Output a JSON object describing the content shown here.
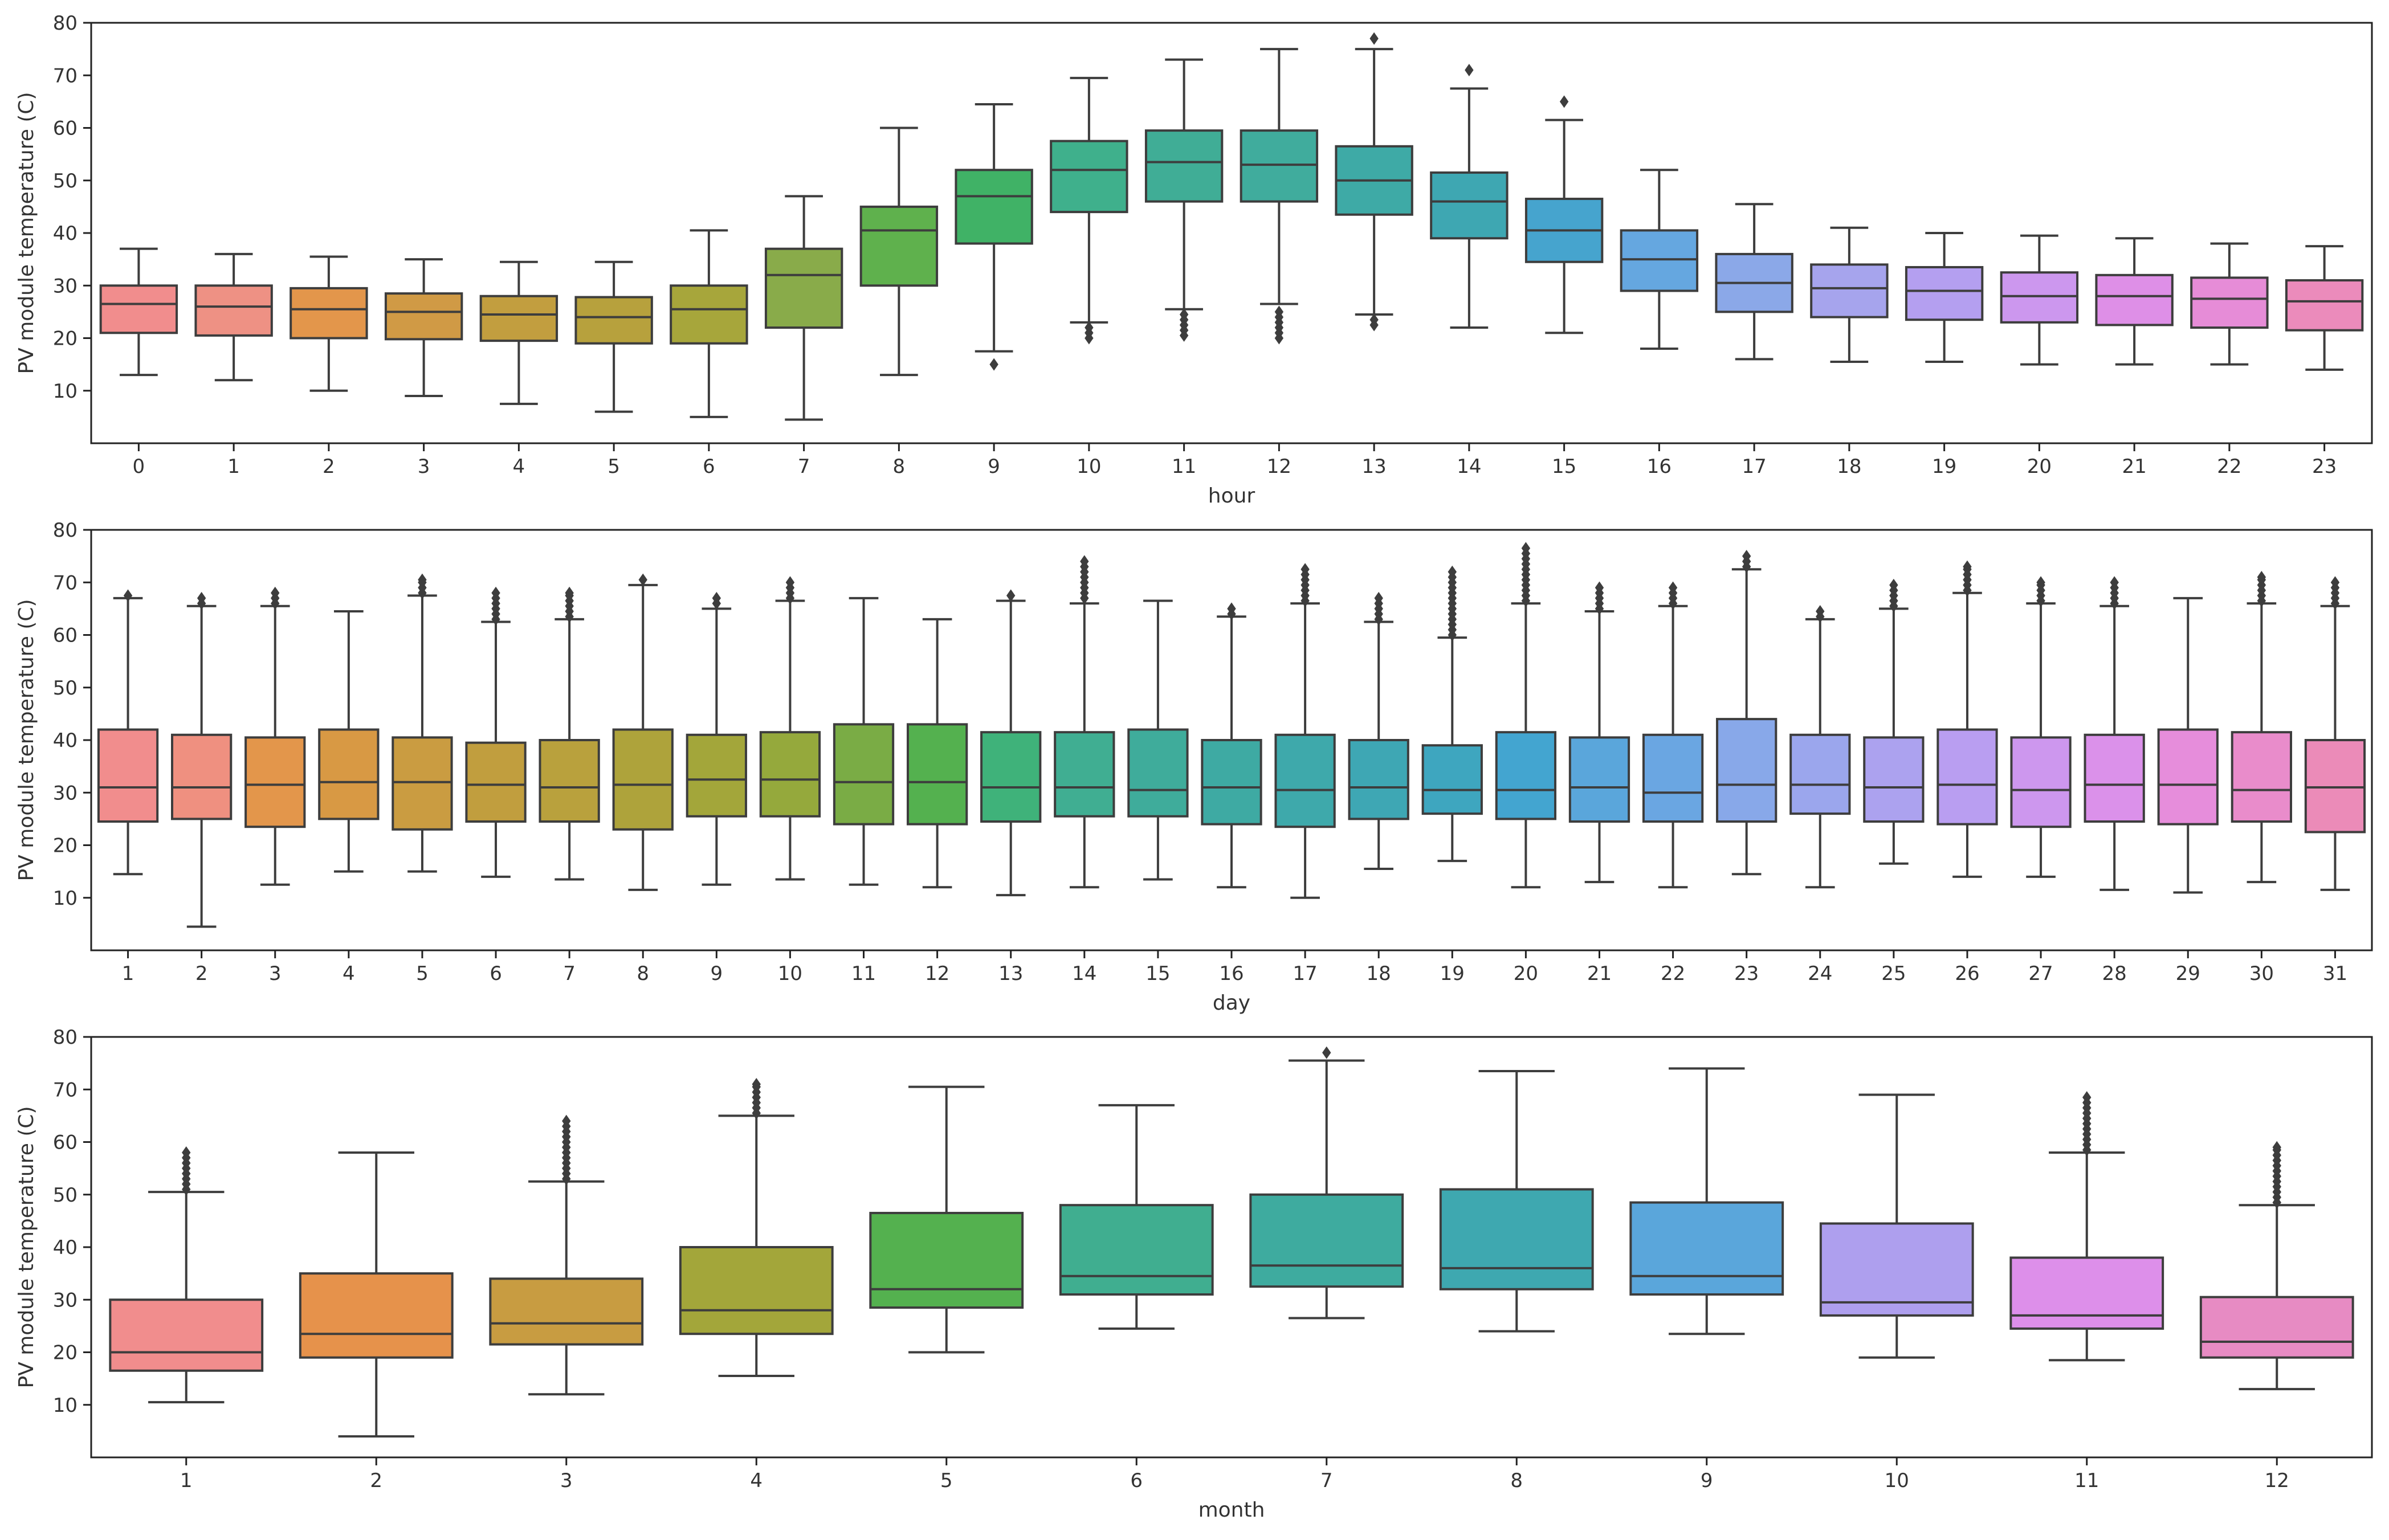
{
  "chart_data": [
    {
      "type": "box",
      "xlabel": "hour",
      "ylabel": "PV module temperature (C)",
      "ylim": [
        0,
        80
      ],
      "yticks": [
        10,
        20,
        30,
        40,
        50,
        60,
        70,
        80
      ],
      "grid": false,
      "categories": [
        "0",
        "1",
        "2",
        "3",
        "4",
        "5",
        "6",
        "7",
        "8",
        "9",
        "10",
        "11",
        "12",
        "13",
        "14",
        "15",
        "16",
        "17",
        "18",
        "19",
        "20",
        "21",
        "22",
        "23"
      ],
      "colors": [
        "#f18d8d",
        "#ee9184",
        "#e3964b",
        "#d09a45",
        "#c29e3f",
        "#b7a13d",
        "#a7a63b",
        "#89ab4a",
        "#5fb14d",
        "#40b266",
        "#3fb08c",
        "#40ad96",
        "#40ac9d",
        "#3eaaa6",
        "#3ea7b2",
        "#46a4ce",
        "#65a7e0",
        "#8ba8e8",
        "#a6a4ed",
        "#b49ff0",
        "#cc97ee",
        "#de8fe7",
        "#e68cd7",
        "#eb8bbb"
      ],
      "stats": [
        {
          "whislo": 13,
          "q1": 21,
          "med": 26.5,
          "q3": 30,
          "whishi": 37,
          "fliers": []
        },
        {
          "whislo": 12,
          "q1": 20.5,
          "med": 26,
          "q3": 30,
          "whishi": 36,
          "fliers": []
        },
        {
          "whislo": 10,
          "q1": 20,
          "med": 25.5,
          "q3": 29.5,
          "whishi": 35.5,
          "fliers": []
        },
        {
          "whislo": 9,
          "q1": 19.8,
          "med": 25,
          "q3": 28.5,
          "whishi": 35,
          "fliers": []
        },
        {
          "whislo": 7.5,
          "q1": 19.5,
          "med": 24.5,
          "q3": 28,
          "whishi": 34.5,
          "fliers": []
        },
        {
          "whislo": 6,
          "q1": 19,
          "med": 24,
          "q3": 27.8,
          "whishi": 34.5,
          "fliers": []
        },
        {
          "whislo": 5,
          "q1": 19,
          "med": 25.5,
          "q3": 30,
          "whishi": 40.5,
          "fliers": []
        },
        {
          "whislo": 4.5,
          "q1": 22,
          "med": 32,
          "q3": 37,
          "whishi": 47,
          "fliers": []
        },
        {
          "whislo": 13,
          "q1": 30,
          "med": 40.5,
          "q3": 45,
          "whishi": 60,
          "fliers": []
        },
        {
          "whislo": 17.5,
          "q1": 38,
          "med": 47,
          "q3": 52,
          "whishi": 64.5,
          "fliers": [
            15
          ]
        },
        {
          "whislo": 23,
          "q1": 44,
          "med": 52,
          "q3": 57.5,
          "whishi": 69.5,
          "fliers": [
            20,
            21,
            22
          ]
        },
        {
          "whislo": 25.5,
          "q1": 46,
          "med": 53.5,
          "q3": 59.5,
          "whishi": 73,
          "fliers": [
            20.5,
            21.5,
            22.5,
            23.5,
            24.5
          ]
        },
        {
          "whislo": 26.5,
          "q1": 46,
          "med": 53,
          "q3": 59.5,
          "whishi": 75,
          "fliers": [
            20,
            21,
            22,
            23,
            24,
            25
          ]
        },
        {
          "whislo": 24.5,
          "q1": 43.5,
          "med": 50,
          "q3": 56.5,
          "whishi": 75,
          "fliers": [
            22.5,
            23.5,
            77
          ]
        },
        {
          "whislo": 22,
          "q1": 39,
          "med": 46,
          "q3": 51.5,
          "whishi": 67.5,
          "fliers": [
            71
          ]
        },
        {
          "whislo": 21,
          "q1": 34.5,
          "med": 40.5,
          "q3": 46.5,
          "whishi": 61.5,
          "fliers": [
            65
          ]
        },
        {
          "whislo": 18,
          "q1": 29,
          "med": 35,
          "q3": 40.5,
          "whishi": 52,
          "fliers": []
        },
        {
          "whislo": 16,
          "q1": 25,
          "med": 30.5,
          "q3": 36,
          "whishi": 45.5,
          "fliers": []
        },
        {
          "whislo": 15.5,
          "q1": 24,
          "med": 29.5,
          "q3": 34,
          "whishi": 41,
          "fliers": []
        },
        {
          "whislo": 15.5,
          "q1": 23.5,
          "med": 29,
          "q3": 33.5,
          "whishi": 40,
          "fliers": []
        },
        {
          "whislo": 15,
          "q1": 23,
          "med": 28,
          "q3": 32.5,
          "whishi": 39.5,
          "fliers": []
        },
        {
          "whislo": 15,
          "q1": 22.5,
          "med": 28,
          "q3": 32,
          "whishi": 39,
          "fliers": []
        },
        {
          "whislo": 15,
          "q1": 22,
          "med": 27.5,
          "q3": 31.5,
          "whishi": 38,
          "fliers": []
        },
        {
          "whislo": 14,
          "q1": 21.5,
          "med": 27,
          "q3": 31,
          "whishi": 37.5,
          "fliers": []
        }
      ]
    },
    {
      "type": "box",
      "xlabel": "day",
      "ylabel": "PV module temperature (C)",
      "ylim": [
        0,
        80
      ],
      "yticks": [
        10,
        20,
        30,
        40,
        50,
        60,
        70,
        80
      ],
      "grid": false,
      "categories": [
        "1",
        "2",
        "3",
        "4",
        "5",
        "6",
        "7",
        "8",
        "9",
        "10",
        "11",
        "12",
        "13",
        "14",
        "15",
        "16",
        "17",
        "18",
        "19",
        "20",
        "21",
        "22",
        "23",
        "24",
        "25",
        "26",
        "27",
        "28",
        "29",
        "30",
        "31"
      ],
      "colors": [
        "#f18d8d",
        "#ef9080",
        "#e3964b",
        "#d89944",
        "#ca9c41",
        "#c19e3e",
        "#b9a13d",
        "#aea33b",
        "#a3a63a",
        "#95a93c",
        "#7aac45",
        "#54b14f",
        "#3fb27a",
        "#40ae92",
        "#3fac9b",
        "#3eaaa3",
        "#3ea9ab",
        "#3ea7b4",
        "#3ea6bf",
        "#43a5d0",
        "#5aa6db",
        "#6aa6e2",
        "#88a8e9",
        "#9ba6ed",
        "#aca2ef",
        "#b99ef1",
        "#cd97ee",
        "#db91ea",
        "#e68ddb",
        "#e98ccb",
        "#eb8bb8"
      ],
      "stats": [
        {
          "whislo": 14.5,
          "q1": 24.5,
          "med": 31,
          "q3": 42,
          "whishi": 67,
          "fliers": [
            67.5
          ]
        },
        {
          "whislo": 4.5,
          "q1": 25,
          "med": 31,
          "q3": 41,
          "whishi": 65.5,
          "fliers": [
            66,
            67
          ]
        },
        {
          "whislo": 12.5,
          "q1": 23.5,
          "med": 31.5,
          "q3": 40.5,
          "whishi": 65.5,
          "fliers": [
            66,
            67,
            68
          ]
        },
        {
          "whislo": 15,
          "q1": 25,
          "med": 32,
          "q3": 42,
          "whishi": 64.5,
          "fliers": []
        },
        {
          "whislo": 15,
          "q1": 23,
          "med": 32,
          "q3": 40.5,
          "whishi": 67.5,
          "fliers": [
            68,
            69,
            70,
            70.5
          ]
        },
        {
          "whislo": 14,
          "q1": 24.5,
          "med": 31.5,
          "q3": 39.5,
          "whishi": 62.5,
          "fliers": [
            63,
            64,
            65,
            66,
            67,
            68
          ]
        },
        {
          "whislo": 13.5,
          "q1": 24.5,
          "med": 31,
          "q3": 40,
          "whishi": 63,
          "fliers": [
            63.5,
            64.5,
            65.5,
            66.5,
            67.5,
            68
          ]
        },
        {
          "whislo": 11.5,
          "q1": 23,
          "med": 31.5,
          "q3": 42,
          "whishi": 69.5,
          "fliers": [
            70.5
          ]
        },
        {
          "whislo": 12.5,
          "q1": 25.5,
          "med": 32.5,
          "q3": 41,
          "whishi": 65,
          "fliers": [
            66,
            67
          ]
        },
        {
          "whislo": 13.5,
          "q1": 25.5,
          "med": 32.5,
          "q3": 41.5,
          "whishi": 66.5,
          "fliers": [
            67,
            68,
            69,
            70
          ]
        },
        {
          "whislo": 12.5,
          "q1": 24,
          "med": 32,
          "q3": 43,
          "whishi": 67,
          "fliers": []
        },
        {
          "whislo": 12,
          "q1": 24,
          "med": 32,
          "q3": 43,
          "whishi": 63,
          "fliers": []
        },
        {
          "whislo": 10.5,
          "q1": 24.5,
          "med": 31,
          "q3": 41.5,
          "whishi": 66.5,
          "fliers": [
            67.5
          ]
        },
        {
          "whislo": 12,
          "q1": 25.5,
          "med": 31,
          "q3": 41.5,
          "whishi": 66,
          "fliers": [
            67,
            68,
            69,
            70,
            71,
            72,
            73,
            74
          ]
        },
        {
          "whislo": 13.5,
          "q1": 25.5,
          "med": 30.5,
          "q3": 42,
          "whishi": 66.5,
          "fliers": []
        },
        {
          "whislo": 12,
          "q1": 24,
          "med": 31,
          "q3": 40,
          "whishi": 63.5,
          "fliers": [
            64,
            65
          ]
        },
        {
          "whislo": 10,
          "q1": 23.5,
          "med": 30.5,
          "q3": 41,
          "whishi": 66,
          "fliers": [
            66.5,
            67.5,
            68.5,
            69.5,
            70.5,
            71.5,
            72.5
          ]
        },
        {
          "whislo": 15.5,
          "q1": 25,
          "med": 31,
          "q3": 40,
          "whishi": 62.5,
          "fliers": [
            63,
            64,
            65,
            66,
            67
          ]
        },
        {
          "whislo": 17,
          "q1": 26,
          "med": 30.5,
          "q3": 39,
          "whishi": 59.5,
          "fliers": [
            60,
            61,
            62,
            63,
            64,
            65,
            66,
            67,
            68,
            69,
            70,
            71,
            72
          ]
        },
        {
          "whislo": 12,
          "q1": 25,
          "med": 30.5,
          "q3": 41.5,
          "whishi": 66,
          "fliers": [
            66.5,
            67.5,
            68.5,
            69.5,
            70.5,
            71.5,
            72.5,
            73.5,
            74.5,
            75.5,
            76.5
          ]
        },
        {
          "whislo": 13,
          "q1": 24.5,
          "med": 31,
          "q3": 40.5,
          "whishi": 64.5,
          "fliers": [
            65,
            66,
            67,
            68,
            69
          ]
        },
        {
          "whislo": 12,
          "q1": 24.5,
          "med": 30,
          "q3": 41,
          "whishi": 65.5,
          "fliers": [
            66,
            67,
            68,
            69
          ]
        },
        {
          "whislo": 14.5,
          "q1": 24.5,
          "med": 31.5,
          "q3": 44,
          "whishi": 72.5,
          "fliers": [
            73,
            74,
            75
          ]
        },
        {
          "whislo": 12,
          "q1": 26,
          "med": 31.5,
          "q3": 41,
          "whishi": 63,
          "fliers": [
            63.5,
            64.5
          ]
        },
        {
          "whislo": 16.5,
          "q1": 24.5,
          "med": 31,
          "q3": 40.5,
          "whishi": 65,
          "fliers": [
            65.5,
            66.5,
            67.5,
            68.5,
            69.5
          ]
        },
        {
          "whislo": 14,
          "q1": 24,
          "med": 31.5,
          "q3": 42,
          "whishi": 68,
          "fliers": [
            68.5,
            69.5,
            70.5,
            71.5,
            72.5,
            73
          ]
        },
        {
          "whislo": 14,
          "q1": 23.5,
          "med": 30.5,
          "q3": 40.5,
          "whishi": 66,
          "fliers": [
            66.5,
            67.5,
            68.5,
            69.5,
            70
          ]
        },
        {
          "whislo": 11.5,
          "q1": 24.5,
          "med": 31.5,
          "q3": 41,
          "whishi": 65.5,
          "fliers": [
            66,
            67,
            68,
            69,
            70
          ]
        },
        {
          "whislo": 11,
          "q1": 24,
          "med": 31.5,
          "q3": 42,
          "whishi": 67,
          "fliers": []
        },
        {
          "whislo": 13,
          "q1": 24.5,
          "med": 30.5,
          "q3": 41.5,
          "whishi": 66,
          "fliers": [
            66.5,
            67.5,
            68.5,
            69.5,
            70.5,
            71
          ]
        },
        {
          "whislo": 11.5,
          "q1": 22.5,
          "med": 31,
          "q3": 40,
          "whishi": 65.5,
          "fliers": [
            66,
            67,
            68,
            69,
            70
          ]
        }
      ]
    },
    {
      "type": "box",
      "xlabel": "month",
      "ylabel": "PV module temperature (C)",
      "ylim": [
        0,
        80
      ],
      "yticks": [
        10,
        20,
        30,
        40,
        50,
        60,
        70,
        80
      ],
      "grid": false,
      "categories": [
        "1",
        "2",
        "3",
        "4",
        "5",
        "6",
        "7",
        "8",
        "9",
        "10",
        "11",
        "12"
      ],
      "colors": [
        "#f18d8d",
        "#e6924b",
        "#c89c41",
        "#a3a63a",
        "#54b14f",
        "#40ae90",
        "#3eab9f",
        "#3ea8b0",
        "#5aa6db",
        "#ae9fee",
        "#dd8fea",
        "#e78bc3"
      ],
      "stats": [
        {
          "whislo": 10.5,
          "q1": 16.5,
          "med": 20,
          "q3": 30,
          "whishi": 50.5,
          "fliers": [
            51,
            52,
            53,
            54,
            55,
            56,
            57,
            58
          ]
        },
        {
          "whislo": 4,
          "q1": 19,
          "med": 23.5,
          "q3": 35,
          "whishi": 58,
          "fliers": []
        },
        {
          "whislo": 12,
          "q1": 21.5,
          "med": 25.5,
          "q3": 34,
          "whishi": 52.5,
          "fliers": [
            53,
            54,
            55,
            56,
            57,
            58,
            59,
            60,
            61,
            62,
            63,
            64
          ]
        },
        {
          "whislo": 15.5,
          "q1": 23.5,
          "med": 28,
          "q3": 40,
          "whishi": 65,
          "fliers": [
            65.5,
            66.5,
            67.5,
            68.5,
            69.5,
            70.5,
            71
          ]
        },
        {
          "whislo": 20,
          "q1": 28.5,
          "med": 32,
          "q3": 46.5,
          "whishi": 70.5,
          "fliers": []
        },
        {
          "whislo": 24.5,
          "q1": 31,
          "med": 34.5,
          "q3": 48,
          "whishi": 67,
          "fliers": []
        },
        {
          "whislo": 26.5,
          "q1": 32.5,
          "med": 36.5,
          "q3": 50,
          "whishi": 75.5,
          "fliers": [
            77
          ]
        },
        {
          "whislo": 24,
          "q1": 32,
          "med": 36,
          "q3": 51,
          "whishi": 73.5,
          "fliers": []
        },
        {
          "whislo": 23.5,
          "q1": 31,
          "med": 34.5,
          "q3": 48.5,
          "whishi": 74,
          "fliers": []
        },
        {
          "whislo": 19,
          "q1": 27,
          "med": 29.5,
          "q3": 44.5,
          "whishi": 69,
          "fliers": []
        },
        {
          "whislo": 18.5,
          "q1": 24.5,
          "med": 27,
          "q3": 38,
          "whishi": 58,
          "fliers": [
            58.5,
            59.5,
            60.5,
            61.5,
            62.5,
            63.5,
            64.5,
            65.5,
            66.5,
            67.5,
            68.5
          ]
        },
        {
          "whislo": 13,
          "q1": 19,
          "med": 22,
          "q3": 30.5,
          "whishi": 48,
          "fliers": [
            48.5,
            49.5,
            50.5,
            51.5,
            52.5,
            53.5,
            54.5,
            55.5,
            56.5,
            57.5,
            58.5,
            59
          ]
        }
      ]
    }
  ]
}
